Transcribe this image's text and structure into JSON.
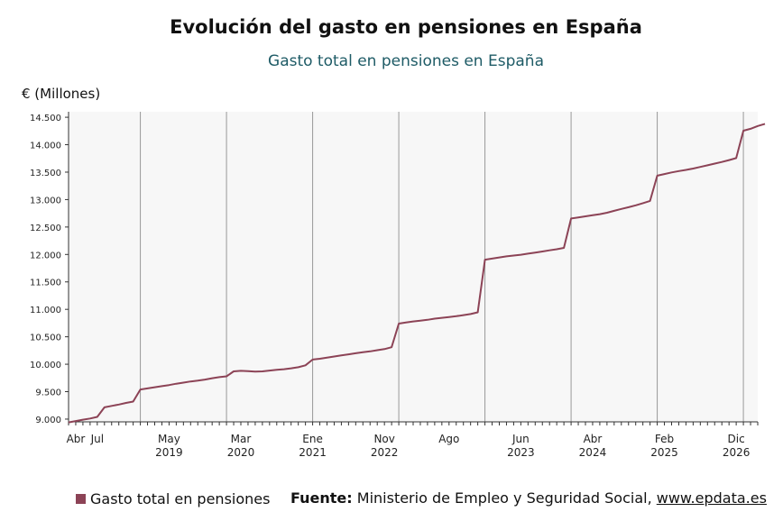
{
  "colors": {
    "series": "#8c4356",
    "subtitle": "#1e5b66",
    "axis": "#333333",
    "grid": "#999999",
    "plot_bg": "#f7f7f7"
  },
  "chart_data": {
    "type": "line",
    "title": "Evolución del gasto en pensiones en España",
    "subtitle": "Gasto total en pensiones en España",
    "ylabel": "€ (Millones)",
    "ylim": [
      8950,
      14600
    ],
    "yticks": [
      9000,
      9500,
      10000,
      10500,
      11000,
      11500,
      12000,
      12500,
      13000,
      13500,
      14000,
      14500
    ],
    "ytick_labels": [
      "9.000",
      "9.500",
      "10.000",
      "10.500",
      "11.000",
      "11.500",
      "12.000",
      "12.500",
      "13.000",
      "13.500",
      "14.000",
      "14.500"
    ],
    "xlim": [
      "2018-03",
      "2026-03"
    ],
    "year_lines": [
      "2019-01",
      "2020-01",
      "2021-01",
      "2022-01",
      "2023-01",
      "2024-01",
      "2025-01",
      "2026-01"
    ],
    "xtick_labels": [
      {
        "month": "Abr",
        "year": "",
        "date": "2018-04"
      },
      {
        "month": "Jul",
        "year": "",
        "date": "2018-07"
      },
      {
        "month": "May",
        "year": "2019",
        "date": "2019-05"
      },
      {
        "month": "Mar",
        "year": "2020",
        "date": "2020-03"
      },
      {
        "month": "Ene",
        "year": "2021",
        "date": "2021-01"
      },
      {
        "month": "Nov",
        "year": "2022",
        "date": "2021-11"
      },
      {
        "month": "Ago",
        "year": "",
        "date": "2022-08"
      },
      {
        "month": "Jun",
        "year": "2023",
        "date": "2023-06"
      },
      {
        "month": "Abr",
        "year": "2024",
        "date": "2024-04"
      },
      {
        "month": "Feb",
        "year": "2025",
        "date": "2025-02"
      },
      {
        "month": "Dic",
        "year": "2026",
        "date": "2025-12"
      }
    ],
    "series": [
      {
        "name": "Gasto total en pensiones",
        "points": [
          [
            "2018-03",
            8940
          ],
          [
            "2018-04",
            8965
          ],
          [
            "2018-05",
            8990
          ],
          [
            "2018-06",
            9010
          ],
          [
            "2018-07",
            9040
          ],
          [
            "2018-08",
            9215
          ],
          [
            "2018-09",
            9240
          ],
          [
            "2018-10",
            9265
          ],
          [
            "2018-11",
            9295
          ],
          [
            "2018-12",
            9320
          ],
          [
            "2019-01",
            9540
          ],
          [
            "2019-02",
            9560
          ],
          [
            "2019-03",
            9580
          ],
          [
            "2019-04",
            9600
          ],
          [
            "2019-05",
            9620
          ],
          [
            "2019-06",
            9645
          ],
          [
            "2019-07",
            9665
          ],
          [
            "2019-08",
            9685
          ],
          [
            "2019-09",
            9700
          ],
          [
            "2019-10",
            9720
          ],
          [
            "2019-11",
            9745
          ],
          [
            "2019-12",
            9765
          ],
          [
            "2020-01",
            9780
          ],
          [
            "2020-02",
            9870
          ],
          [
            "2020-03",
            9880
          ],
          [
            "2020-04",
            9875
          ],
          [
            "2020-05",
            9865
          ],
          [
            "2020-06",
            9870
          ],
          [
            "2020-07",
            9885
          ],
          [
            "2020-08",
            9900
          ],
          [
            "2020-09",
            9910
          ],
          [
            "2020-10",
            9925
          ],
          [
            "2020-11",
            9945
          ],
          [
            "2020-12",
            9980
          ],
          [
            "2021-01",
            10085
          ],
          [
            "2021-02",
            10100
          ],
          [
            "2021-03",
            10120
          ],
          [
            "2021-04",
            10140
          ],
          [
            "2021-05",
            10160
          ],
          [
            "2021-06",
            10180
          ],
          [
            "2021-07",
            10200
          ],
          [
            "2021-08",
            10220
          ],
          [
            "2021-09",
            10235
          ],
          [
            "2021-10",
            10255
          ],
          [
            "2021-11",
            10275
          ],
          [
            "2021-12",
            10310
          ],
          [
            "2022-01",
            10740
          ],
          [
            "2022-02",
            10760
          ],
          [
            "2022-03",
            10780
          ],
          [
            "2022-04",
            10795
          ],
          [
            "2022-05",
            10810
          ],
          [
            "2022-06",
            10830
          ],
          [
            "2022-07",
            10845
          ],
          [
            "2022-08",
            10860
          ],
          [
            "2022-09",
            10875
          ],
          [
            "2022-10",
            10895
          ],
          [
            "2022-11",
            10915
          ],
          [
            "2022-12",
            10945
          ],
          [
            "2023-01",
            11905
          ],
          [
            "2023-02",
            11925
          ],
          [
            "2023-03",
            11945
          ],
          [
            "2023-04",
            11965
          ],
          [
            "2023-05",
            11980
          ],
          [
            "2023-06",
            11995
          ],
          [
            "2023-07",
            12015
          ],
          [
            "2023-08",
            12035
          ],
          [
            "2023-09",
            12055
          ],
          [
            "2023-10",
            12075
          ],
          [
            "2023-11",
            12095
          ],
          [
            "2023-12",
            12120
          ],
          [
            "2024-01",
            12655
          ],
          [
            "2024-02",
            12675
          ],
          [
            "2024-03",
            12695
          ],
          [
            "2024-04",
            12715
          ],
          [
            "2024-05",
            12735
          ],
          [
            "2024-06",
            12760
          ],
          [
            "2024-07",
            12795
          ],
          [
            "2024-08",
            12830
          ],
          [
            "2024-09",
            12860
          ],
          [
            "2024-10",
            12895
          ],
          [
            "2024-11",
            12935
          ],
          [
            "2024-12",
            12975
          ],
          [
            "2025-01",
            13435
          ],
          [
            "2025-02",
            13465
          ],
          [
            "2025-03",
            13495
          ],
          [
            "2025-04",
            13520
          ],
          [
            "2025-05",
            13540
          ],
          [
            "2025-06",
            13565
          ],
          [
            "2025-07",
            13595
          ],
          [
            "2025-08",
            13625
          ],
          [
            "2025-09",
            13655
          ],
          [
            "2025-10",
            13685
          ],
          [
            "2025-11",
            13720
          ],
          [
            "2025-12",
            13755
          ],
          [
            "2026-01",
            14255
          ],
          [
            "2026-02",
            14290
          ],
          [
            "2026-03",
            14340
          ],
          [
            "2026-04",
            14380
          ]
        ]
      }
    ],
    "legend": "bottom-left",
    "grid": "vertical year lines"
  },
  "legend": {
    "label": "Gasto total en pensiones"
  },
  "source": {
    "label": "Fuente:",
    "text": "Ministerio de Empleo y Seguridad Social,",
    "link": "www.epdata.es"
  }
}
